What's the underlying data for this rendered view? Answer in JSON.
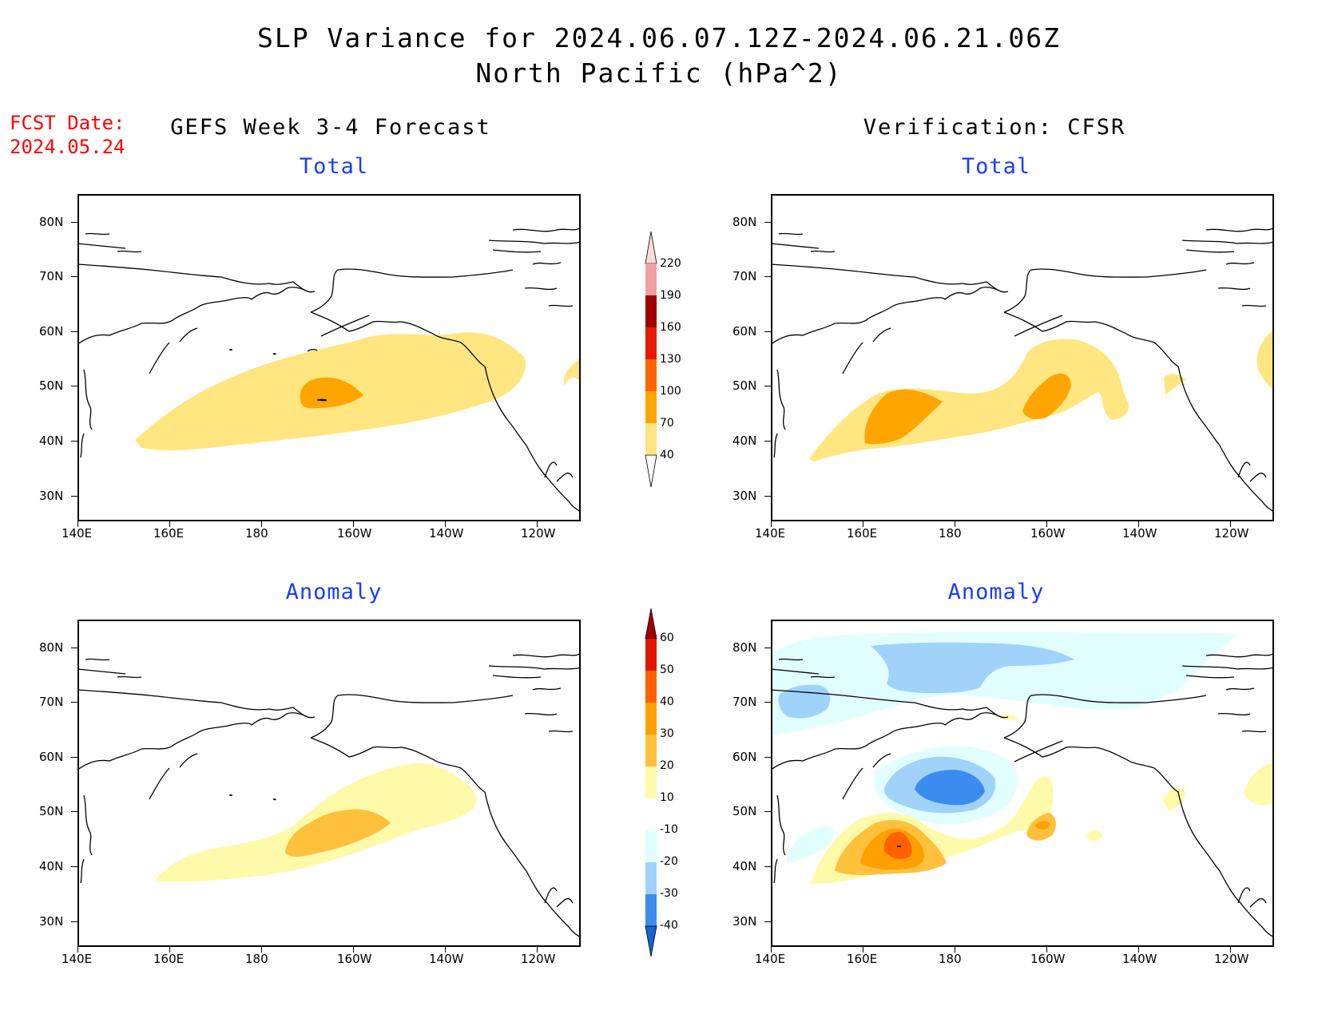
{
  "header": {
    "title_line1": "SLP Variance for 2024.06.07.12Z-2024.06.21.06Z",
    "title_line2": "North Pacific (hPa^2)",
    "fcst_label": "FCST Date:",
    "fcst_date": "2024.05.24"
  },
  "columns": {
    "left": "GEFS Week 3-4 Forecast",
    "right": "Verification: CFSR"
  },
  "panels": {
    "top_left": "Total",
    "top_right": "Total",
    "bottom_left": "Anomaly",
    "bottom_right": "Anomaly"
  },
  "axes": {
    "lat_labels": [
      "80N",
      "70N",
      "60N",
      "50N",
      "40N",
      "30N"
    ],
    "lon_labels": [
      "140E",
      "160E",
      "180",
      "160W",
      "140W",
      "120W"
    ]
  },
  "total_colorbar": {
    "levels": [
      "40",
      "70",
      "100",
      "130",
      "160",
      "190",
      "220"
    ],
    "colors": [
      "#ffe680",
      "#ffa500",
      "#ff6400",
      "#e61a00",
      "#a00000",
      "#f0a0a0",
      "#fadcdc"
    ]
  },
  "anomaly_colorbar": {
    "levels": [
      "-40",
      "-30",
      "-20",
      "-10",
      "10",
      "20",
      "30",
      "40",
      "50",
      "60"
    ],
    "colors": [
      "#1464d2",
      "#3c8cf0",
      "#a0d2fa",
      "#e1ffff",
      "#ffffff",
      "#fffaaa",
      "#ffc03c",
      "#ffa000",
      "#ff6000",
      "#e11400",
      "#a50000"
    ]
  },
  "colors": {
    "title": "#000000",
    "fcst_date": "#ff0000",
    "panel_title": "#1a3cff"
  }
}
